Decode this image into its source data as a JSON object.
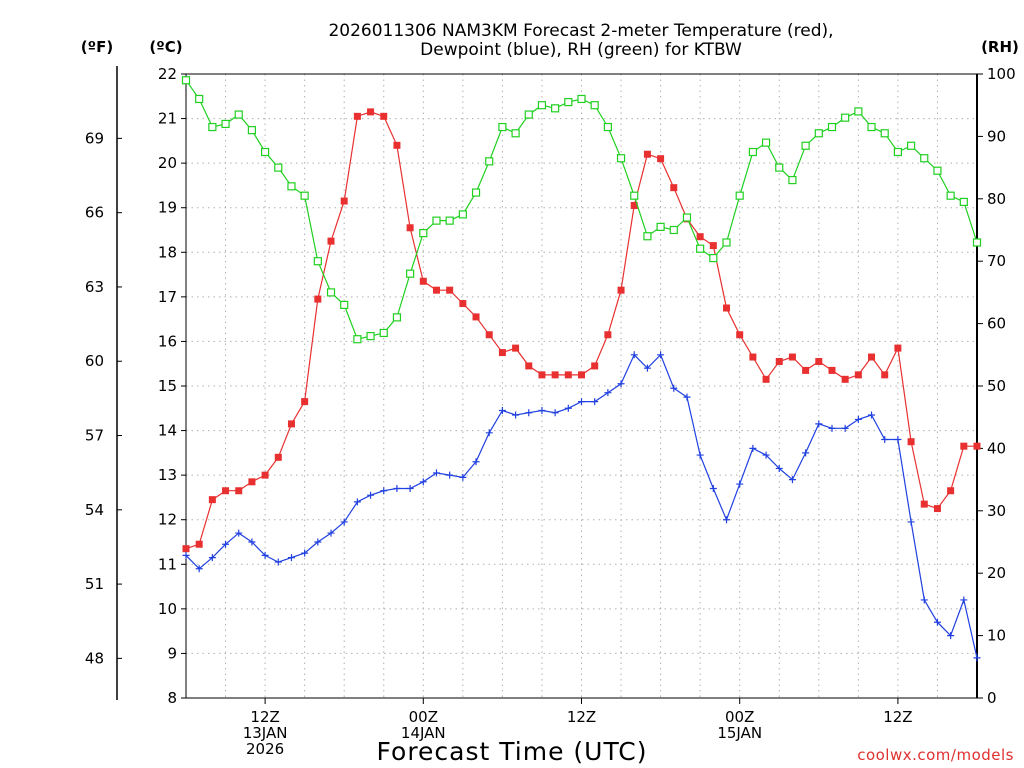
{
  "chart_data": {
    "type": "line",
    "title_line1": "2026011306 NAM3KM Forecast 2-meter Temperature (red),",
    "title_line2": "Dewpoint (blue), RH (green) for KTBW",
    "xlabel": "Forecast Time (UTC)",
    "credit": "coolwx.com/models",
    "unit_f": "(ºF)",
    "unit_c": "(ºC)",
    "unit_rh": "(RH)",
    "celsius_axis": {
      "range": [
        8,
        22
      ],
      "ticks": [
        "8",
        "9",
        "10",
        "11",
        "12",
        "13",
        "14",
        "15",
        "16",
        "17",
        "18",
        "19",
        "20",
        "21",
        "22"
      ]
    },
    "fahrenheit_axis": {
      "ticks": [
        "48",
        "51",
        "54",
        "57",
        "60",
        "63",
        "66",
        "69"
      ],
      "values": [
        48,
        51,
        54,
        57,
        60,
        63,
        66,
        69
      ]
    },
    "rh_axis": {
      "range": [
        0,
        100
      ],
      "ticks": [
        "0",
        "10",
        "20",
        "30",
        "40",
        "50",
        "60",
        "70",
        "80",
        "90",
        "100"
      ]
    },
    "x_axis": {
      "range_hours": [
        0,
        60
      ],
      "ticks": [
        {
          "hour": 6,
          "lines": [
            "12Z",
            "13JAN",
            "2026"
          ]
        },
        {
          "hour": 18,
          "lines": [
            "00Z",
            "14JAN"
          ]
        },
        {
          "hour": 30,
          "lines": [
            "12Z"
          ]
        },
        {
          "hour": 42,
          "lines": [
            "00Z",
            "15JAN"
          ]
        },
        {
          "hour": 54,
          "lines": [
            "12Z"
          ]
        }
      ]
    },
    "series": [
      {
        "name": "Temperature (red)",
        "unit": "C",
        "color": "#e83030",
        "marker": "filled-square",
        "values": [
          11.35,
          11.45,
          12.45,
          12.65,
          12.65,
          12.85,
          13.0,
          13.4,
          14.15,
          14.65,
          16.95,
          18.25,
          19.15,
          21.05,
          21.15,
          21.05,
          20.4,
          18.55,
          17.35,
          17.15,
          17.15,
          16.85,
          16.55,
          16.15,
          15.75,
          15.85,
          15.45,
          15.25,
          15.25,
          15.25,
          15.25,
          15.45,
          16.15,
          17.15,
          19.05,
          20.2,
          20.1,
          19.45,
          18.75,
          18.35,
          18.15,
          16.75,
          16.15,
          15.65,
          15.15,
          15.55,
          15.65,
          15.35,
          15.55,
          15.35,
          15.15,
          15.25,
          15.65,
          15.25,
          15.85,
          13.75,
          12.35,
          12.25,
          12.65,
          13.65,
          13.65
        ]
      },
      {
        "name": "Dewpoint (blue)",
        "unit": "C",
        "color": "#2040e0",
        "marker": "plus",
        "values": [
          11.2,
          10.9,
          11.15,
          11.45,
          11.7,
          11.5,
          11.2,
          11.05,
          11.15,
          11.25,
          11.5,
          11.7,
          11.95,
          12.4,
          12.55,
          12.65,
          12.7,
          12.7,
          12.85,
          13.05,
          13.0,
          12.95,
          13.3,
          13.95,
          14.45,
          14.35,
          14.4,
          14.45,
          14.4,
          14.5,
          14.65,
          14.65,
          14.85,
          15.05,
          15.7,
          15.4,
          15.7,
          14.95,
          14.75,
          13.45,
          12.7,
          12.0,
          12.8,
          13.6,
          13.45,
          13.15,
          12.9,
          13.5,
          14.15,
          14.05,
          14.05,
          14.25,
          14.35,
          13.8,
          13.8,
          11.95,
          10.2,
          9.7,
          9.4,
          10.2,
          8.9
        ]
      },
      {
        "name": "RH (green)",
        "unit": "%",
        "color": "#20d020",
        "marker": "open-square",
        "values": [
          99,
          96,
          91.5,
          92,
          93.5,
          91,
          87.5,
          85,
          82,
          80.5,
          70,
          65,
          63,
          57.5,
          58,
          58.5,
          61,
          68,
          74.5,
          76.5,
          76.5,
          77.5,
          81,
          86,
          91.5,
          90.5,
          93.5,
          95,
          94.5,
          95.5,
          96,
          95,
          91.5,
          86.5,
          80.5,
          74,
          75.5,
          75,
          77,
          72,
          70.5,
          73,
          80.5,
          87.5,
          89,
          85,
          83,
          88.5,
          90.5,
          91.5,
          93,
          94,
          91.5,
          90.5,
          87.5,
          88.5,
          86.5,
          84.5,
          80.5,
          79.5,
          73
        ]
      }
    ]
  }
}
